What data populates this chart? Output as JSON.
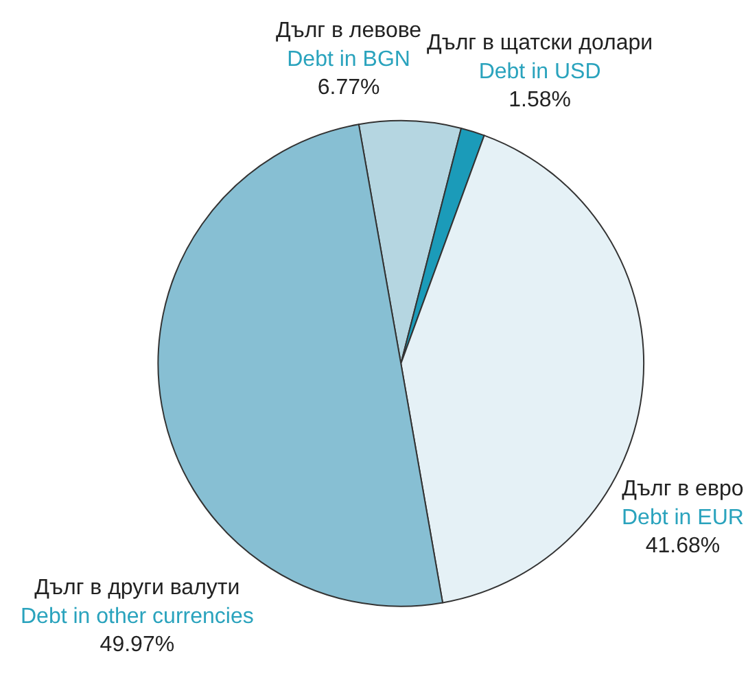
{
  "chart_data": {
    "type": "pie",
    "categories": [
      "Дълг в левове\nDebt in BGN",
      "Дълг в щатски долари\nDebt in USD",
      "Дълг в евро\nDebt in EUR",
      "Дълг в други валути\nDebt in other currencies"
    ],
    "values": [
      6.77,
      1.58,
      41.68,
      49.97
    ],
    "value_labels": [
      "6.77%",
      "1.58%",
      "41.68%",
      "49.97%"
    ],
    "colors": [
      "#b5d6e1",
      "#1b9bb9",
      "#e5f1f6",
      "#87bfd3"
    ],
    "legend": false
  }
}
